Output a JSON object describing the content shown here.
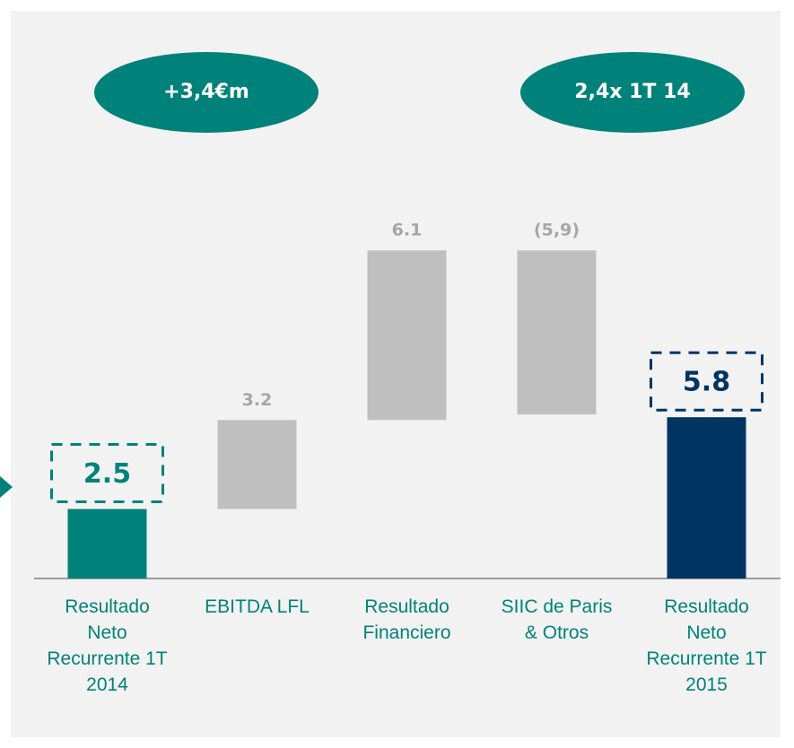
{
  "chart_data": {
    "type": "waterfall",
    "annotations": [
      "+3,4€m",
      "2,4x 1T 14"
    ],
    "categories": [
      "Resultado Neto Recurrente 1T 2014",
      "EBITDA LFL",
      "Resultado Financiero",
      "SIIC de Paris & Otros",
      "Resultado Neto Recurrente 1T 2015"
    ],
    "values": [
      2.5,
      3.2,
      6.1,
      -5.9,
      5.8
    ],
    "value_labels": [
      "2.5",
      "3.2",
      "6.1",
      "(5,9)",
      "5.8"
    ],
    "colors": [
      "#00827a",
      "#bfbfbf",
      "#bfbfbf",
      "#bfbfbf",
      "#003462"
    ],
    "annotation_color": "#00827a"
  }
}
